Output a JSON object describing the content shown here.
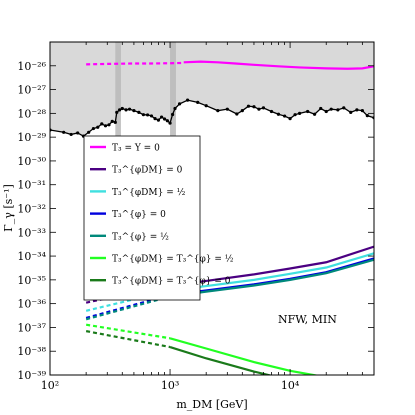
{
  "chart_data": {
    "type": "line",
    "xlabel": "m_DM [GeV]",
    "ylabel": "Γ_γ [s⁻¹]",
    "xscale": "log",
    "yscale": "log",
    "xlim": [
      100,
      50000
    ],
    "ylim": [
      1e-39,
      1e-25
    ],
    "x_ticks": [
      {
        "value": 100,
        "label": "10²"
      },
      {
        "value": 1000,
        "label": "10³"
      },
      {
        "value": 10000,
        "label": "10⁴"
      }
    ],
    "y_ticks": [
      {
        "value": 1e-26,
        "label": "10⁻²⁶"
      },
      {
        "value": 1e-27,
        "label": "10⁻²⁷"
      },
      {
        "value": 1e-28,
        "label": "10⁻²⁸"
      },
      {
        "value": 1e-29,
        "label": "10⁻²⁹"
      },
      {
        "value": 1e-30,
        "label": "10⁻³⁰"
      },
      {
        "value": 1e-31,
        "label": "10⁻³¹"
      },
      {
        "value": 1e-32,
        "label": "10⁻³²"
      },
      {
        "value": 1e-33,
        "label": "10⁻³³"
      },
      {
        "value": 1e-34,
        "label": "10⁻³⁴"
      },
      {
        "value": 1e-35,
        "label": "10⁻³⁵"
      },
      {
        "value": 1e-36,
        "label": "10⁻³⁶"
      },
      {
        "value": 1e-37,
        "label": "10⁻³⁷"
      },
      {
        "value": 1e-38,
        "label": "10⁻³⁸"
      },
      {
        "value": 1e-39,
        "label": "10⁻³⁹"
      }
    ],
    "annotation": "NFW, MIN",
    "legend_position": "left",
    "excluded_region_color": "#d9d9d9",
    "bounds_line": {
      "color": "#000000",
      "x": [
        100,
        130,
        150,
        170,
        190,
        210,
        230,
        250,
        270,
        290,
        310,
        330,
        350,
        360,
        380,
        400,
        430,
        460,
        500,
        550,
        600,
        650,
        700,
        750,
        800,
        850,
        900,
        950,
        1000,
        1050,
        1100,
        1200,
        1400,
        1700,
        2000,
        2500,
        3000,
        3600,
        4000,
        4500,
        5000,
        5500,
        6000,
        7000,
        8000,
        9000,
        10000,
        11000,
        12000,
        14000,
        16000,
        18000,
        20000,
        22000,
        25000,
        28000,
        32000,
        36000,
        40000,
        44000,
        50000
      ],
      "y": [
        2e-29,
        1.6e-29,
        1.3e-29,
        1.5e-29,
        1.1e-29,
        1.6e-29,
        2.3e-29,
        2.6e-29,
        3.6e-29,
        3e-29,
        3.3e-29,
        4.6e-29,
        4.2e-29,
        1.1e-28,
        1.4e-28,
        1.6e-28,
        1.4e-28,
        1.5e-28,
        1.3e-28,
        1.1e-28,
        8.8e-29,
        8.6e-29,
        7.8e-29,
        6e-29,
        5.2e-29,
        7e-29,
        5.8e-29,
        4.9e-29,
        3.9e-29,
        9e-29,
        1.6e-28,
        2.5e-28,
        3.6e-28,
        2.9e-28,
        2.1e-28,
        1.3e-28,
        1.5e-28,
        9.4e-29,
        1.3e-28,
        2e-28,
        1.9e-28,
        1.5e-28,
        1.7e-28,
        1.2e-28,
        9.2e-29,
        7.7e-29,
        6e-29,
        8.8e-29,
        1e-28,
        1.2e-28,
        9.2e-29,
        1.6e-28,
        1.2e-28,
        1.5e-28,
        1.4e-28,
        1.7e-28,
        1.1e-28,
        1.4e-28,
        1.3e-28,
        8e-29,
        6.5e-29
      ]
    },
    "gray_bands": [
      {
        "x0": 350,
        "x1": 390,
        "y0": 1e-29,
        "y1": 1e-25
      },
      {
        "x0": 1000,
        "x1": 1120,
        "y0": 1e-29,
        "y1": 1e-25
      }
    ],
    "series": [
      {
        "name": "T₃ = Y = 0",
        "color": "#ff00ff",
        "dashed": {
          "x": [
            200,
            300,
            500,
            700,
            1000,
            1300
          ],
          "y": [
            1.15e-26,
            1.2e-26,
            1.25e-26,
            1.25e-26,
            1.28e-26,
            1.32e-26
          ]
        },
        "solid": {
          "x": [
            1300,
            1800,
            2500,
            3500,
            5000,
            8000,
            12000,
            20000,
            30000,
            40000,
            50000
          ],
          "y": [
            1.4e-26,
            1.5e-26,
            1.4e-26,
            1.25e-26,
            1.1e-26,
            9.5e-27,
            8.5e-27,
            7.8e-27,
            7.5e-27,
            7.8e-27,
            9.5e-27
          ]
        }
      },
      {
        "name": "T₃^{φDM} = 0",
        "color": "#4b0082",
        "dashed": {
          "x": [
            200,
            1000
          ],
          "y": [
            1.1e-36,
            6e-36
          ]
        },
        "solid": {
          "x": [
            1000,
            2000,
            5000,
            10000,
            20000,
            50000
          ],
          "y": [
            6e-36,
            9e-36,
            1.7e-35,
            3e-35,
            5.5e-35,
            2.5e-34
          ]
        }
      },
      {
        "name": "T₃^{φDM} = ½",
        "color": "#40e0e0",
        "dashed": {
          "x": [
            200,
            1000
          ],
          "y": [
            5e-37,
            3.5e-36
          ]
        },
        "solid": {
          "x": [
            1000,
            2000,
            5000,
            10000,
            20000,
            50000
          ],
          "y": [
            3.5e-36,
            5.5e-36,
            1e-35,
            1.8e-35,
            3.3e-35,
            1.3e-34
          ]
        }
      },
      {
        "name": "T₃^{φ} = 0",
        "color": "#0000dd",
        "dashed": {
          "x": [
            200,
            1000
          ],
          "y": [
            2.5e-37,
            2.3e-36
          ]
        },
        "solid": {
          "x": [
            1000,
            2000,
            5000,
            10000,
            20000,
            50000
          ],
          "y": [
            2.3e-36,
            3.6e-36,
            6.5e-36,
            1.1e-35,
            2.1e-35,
            8e-35
          ]
        }
      },
      {
        "name": "T₃^{φ} = ½",
        "color": "#00897b",
        "dashed": {
          "x": [
            200,
            1000
          ],
          "y": [
            2.2e-37,
            2e-36
          ]
        },
        "solid": {
          "x": [
            1000,
            2000,
            5000,
            10000,
            20000,
            50000
          ],
          "y": [
            2e-36,
            3.2e-36,
            5.8e-36,
            1e-35,
            1.9e-35,
            7e-35
          ]
        }
      },
      {
        "name": "T₃^{φDM} = T₃^{φ} = ½",
        "color": "#22ff22",
        "dashed": {
          "x": [
            200,
            1000
          ],
          "y": [
            1.3e-37,
            3.5e-38
          ]
        },
        "solid": {
          "x": [
            1000,
            2000,
            5000,
            10000,
            20000,
            50000
          ],
          "y": [
            3.5e-38,
            1.3e-38,
            3.5e-39,
            1.5e-39,
            8e-40,
            3e-40
          ]
        }
      },
      {
        "name": "T₃^{φDM} = T₃^{φ} = 0",
        "color": "#1a7a1a",
        "dashed": {
          "x": [
            200,
            1000
          ],
          "y": [
            7e-38,
            1.5e-38
          ]
        },
        "solid": {
          "x": [
            1000,
            2000,
            5000,
            10000,
            20000,
            50000
          ],
          "y": [
            1.5e-38,
            5e-39,
            1.4e-39,
            6e-40,
            3e-40,
            1e-40
          ]
        }
      }
    ]
  }
}
